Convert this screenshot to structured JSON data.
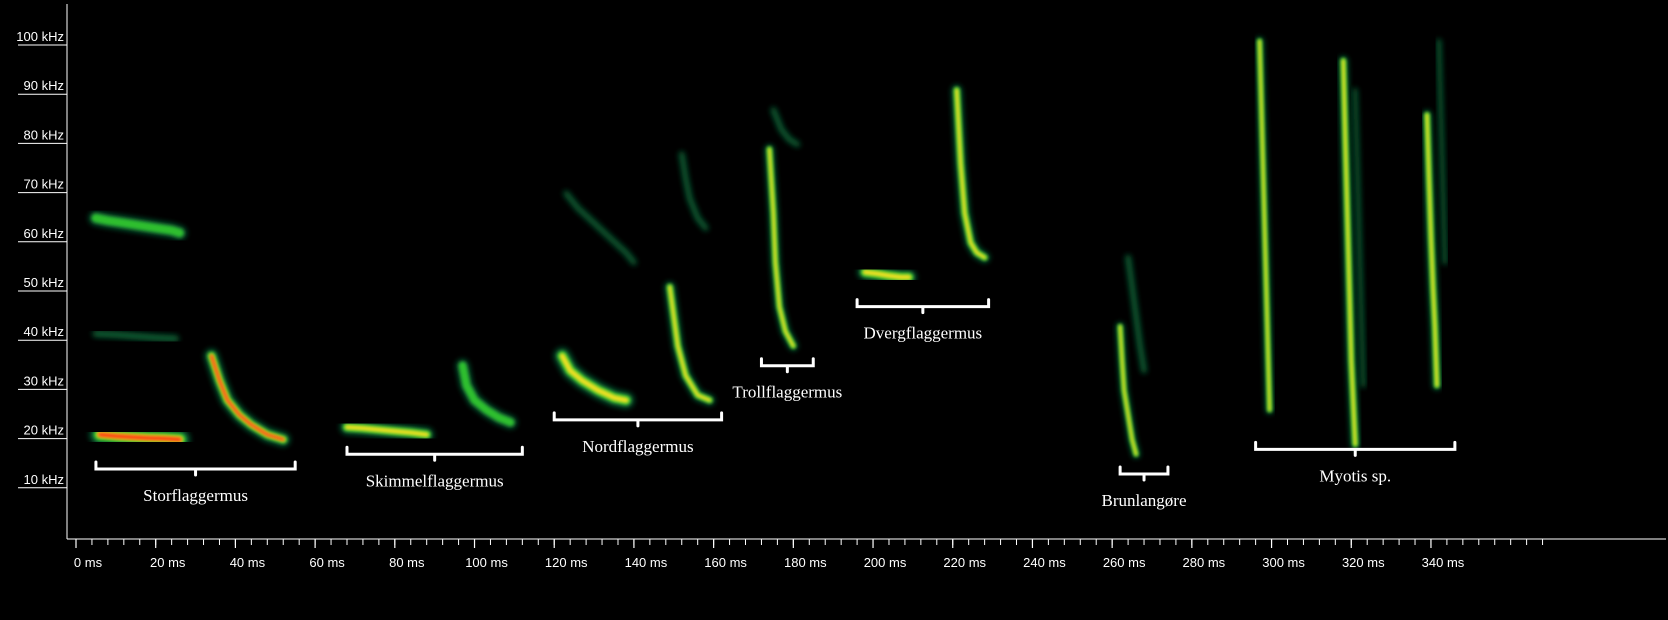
{
  "chart_data": {
    "type": "spectrogram",
    "xlabel": "",
    "ylabel": "",
    "x_unit": "ms",
    "y_unit": "kHz",
    "xlim": [
      0,
      370
    ],
    "ylim": [
      0,
      106
    ],
    "x_ticks": [
      {
        "value": 0,
        "label": "0 ms"
      },
      {
        "value": 20,
        "label": "20 ms"
      },
      {
        "value": 40,
        "label": "40 ms"
      },
      {
        "value": 60,
        "label": "60 ms"
      },
      {
        "value": 80,
        "label": "80 ms"
      },
      {
        "value": 100,
        "label": "100 ms"
      },
      {
        "value": 120,
        "label": "120 ms"
      },
      {
        "value": 140,
        "label": "140 ms"
      },
      {
        "value": 160,
        "label": "160 ms"
      },
      {
        "value": 180,
        "label": "180 ms"
      },
      {
        "value": 200,
        "label": "200 ms"
      },
      {
        "value": 220,
        "label": "220 ms"
      },
      {
        "value": 240,
        "label": "240 ms"
      },
      {
        "value": 260,
        "label": "260 ms"
      },
      {
        "value": 280,
        "label": "280 ms"
      },
      {
        "value": 300,
        "label": "300 ms"
      },
      {
        "value": 320,
        "label": "320 ms"
      },
      {
        "value": 340,
        "label": "340 ms"
      }
    ],
    "y_ticks": [
      {
        "value": 10,
        "label": "10 kHz"
      },
      {
        "value": 20,
        "label": "20 kHz"
      },
      {
        "value": 30,
        "label": "30 kHz"
      },
      {
        "value": 40,
        "label": "40 kHz"
      },
      {
        "value": 50,
        "label": "50 kHz"
      },
      {
        "value": 60,
        "label": "60 kHz"
      },
      {
        "value": 70,
        "label": "70 kHz"
      },
      {
        "value": 80,
        "label": "80 kHz"
      },
      {
        "value": 90,
        "label": "90 kHz"
      },
      {
        "value": 100,
        "label": "100 kHz"
      }
    ],
    "colors": {
      "background": "#000000",
      "low": "#0b6b3a",
      "mid": "#2fbf2f",
      "high": "#f0e020",
      "peak": "#ff3010",
      "axis": "#ffffff"
    },
    "groups": [
      {
        "label": "Storflaggermus",
        "bracket_ms": [
          5,
          55
        ],
        "bracket_khz": 13,
        "calls": [
          {
            "t": [
              5,
              8,
              12,
              16,
              20,
              24,
              26
            ],
            "f": [
              64,
              63.5,
              63,
              62.5,
              62,
              61.5,
              61
            ],
            "intensity": 0.35,
            "width": 12
          },
          {
            "t": [
              5,
              10,
              15,
              20,
              25
            ],
            "f": [
              40.5,
              40.3,
              40,
              39.7,
              39.5
            ],
            "intensity": 0.12,
            "width": 6
          },
          {
            "t": [
              6,
              10,
              14,
              18,
              22,
              26
            ],
            "f": [
              20,
              19.7,
              19.5,
              19.3,
              19.2,
              19
            ],
            "intensity": 1.0,
            "width": 18
          },
          {
            "t": [
              34,
              36,
              38,
              41,
              44,
              48,
              52
            ],
            "f": [
              36,
              31,
              27,
              24,
              22,
              20,
              19
            ],
            "intensity": 0.95,
            "width": 12
          }
        ]
      },
      {
        "label": "Skimmelflaggermus",
        "bracket_ms": [
          68,
          112
        ],
        "bracket_khz": 16,
        "calls": [
          {
            "t": [
              68,
              72,
              76,
              80,
              84,
              88
            ],
            "f": [
              21.5,
              21.3,
              21,
              20.7,
              20.4,
              20
            ],
            "intensity": 0.7,
            "width": 12
          },
          {
            "t": [
              97,
              98,
              100,
              103,
              106,
              109
            ],
            "f": [
              34,
              30,
              27,
              25,
              23.5,
              22.5
            ],
            "intensity": 0.55,
            "width": 11
          }
        ]
      },
      {
        "label": "Nordflaggermus",
        "bracket_ms": [
          120,
          162
        ],
        "bracket_khz": 23,
        "calls": [
          {
            "t": [
              123,
              126,
              130,
              134,
              138,
              140
            ],
            "f": [
              69,
              66,
              63,
              60,
              57,
              55
            ],
            "intensity": 0.2,
            "width": 5
          },
          {
            "t": [
              122,
              124,
              127,
              131,
              135,
              138
            ],
            "f": [
              36,
              33,
              31,
              29,
              27.5,
              27
            ],
            "intensity": 0.85,
            "width": 14
          },
          {
            "t": [
              152,
              153,
              154,
              156,
              158
            ],
            "f": [
              77,
              72,
              68,
              64,
              62
            ],
            "intensity": 0.25,
            "width": 5
          },
          {
            "t": [
              149,
              150,
              151,
              153,
              156,
              159
            ],
            "f": [
              50,
              44,
              38,
              32,
              28,
              27
            ],
            "intensity": 0.85,
            "width": 9
          }
        ]
      },
      {
        "label": "Trollflaggermus",
        "bracket_ms": [
          172,
          185
        ],
        "bracket_khz": 34,
        "calls": [
          {
            "t": [
              175,
              176,
              177,
              179,
              181
            ],
            "f": [
              86,
              84,
              82,
              80,
              79
            ],
            "intensity": 0.2,
            "width": 5
          },
          {
            "t": [
              174,
              175,
              175.5,
              176.5,
              178,
              180
            ],
            "f": [
              78,
              65,
              55,
              46,
              41,
              38
            ],
            "intensity": 0.9,
            "width": 8
          }
        ]
      },
      {
        "label": "Dvergflaggermus",
        "bracket_ms": [
          196,
          229
        ],
        "bracket_khz": 46,
        "calls": [
          {
            "t": [
              198,
              201,
              204,
              207,
              209
            ],
            "f": [
              53,
              52.7,
              52.3,
              52,
              52
            ],
            "intensity": 0.85,
            "width": 13
          },
          {
            "t": [
              221,
              222,
              223,
              224.5,
              226,
              228
            ],
            "f": [
              90,
              75,
              65,
              59,
              57,
              56
            ],
            "intensity": 0.8,
            "width": 9
          }
        ]
      },
      {
        "label": "Brunlangøre",
        "bracket_ms": [
          262,
          274
        ],
        "bracket_khz": 12,
        "calls": [
          {
            "t": [
              264,
              265,
              266,
              267,
              268
            ],
            "f": [
              56,
              50,
              44,
              38,
              33
            ],
            "intensity": 0.3,
            "width": 5
          },
          {
            "t": [
              262,
              262.5,
              263,
              264,
              265,
              266
            ],
            "f": [
              42,
              35,
              29,
              24,
              19,
              16
            ],
            "intensity": 0.8,
            "width": 7
          }
        ]
      },
      {
        "label": "Myotis sp.",
        "bracket_ms": [
          296,
          346
        ],
        "bracket_khz": 17,
        "calls": [
          {
            "t": [
              297,
              297.5,
              298,
              298.5,
              299,
              299.5
            ],
            "f": [
              100,
              85,
              70,
              55,
              40,
              25
            ],
            "intensity": 0.8,
            "width": 7
          },
          {
            "t": [
              318,
              318.5,
              319,
              319.5,
              320,
              321
            ],
            "f": [
              96,
              80,
              65,
              50,
              35,
              18
            ],
            "intensity": 0.85,
            "width": 8
          },
          {
            "t": [
              321,
              321.5,
              322,
              322.5,
              323
            ],
            "f": [
              90,
              75,
              60,
              45,
              30
            ],
            "intensity": 0.25,
            "width": 4
          },
          {
            "t": [
              339,
              339.5,
              340,
              340.5,
              341,
              341.5
            ],
            "f": [
              85,
              72,
              60,
              50,
              42,
              30
            ],
            "intensity": 0.8,
            "width": 8
          },
          {
            "t": [
              342,
              342.5,
              343,
              343.5
            ],
            "f": [
              100,
              85,
              70,
              55
            ],
            "intensity": 0.2,
            "width": 4
          }
        ]
      }
    ]
  }
}
